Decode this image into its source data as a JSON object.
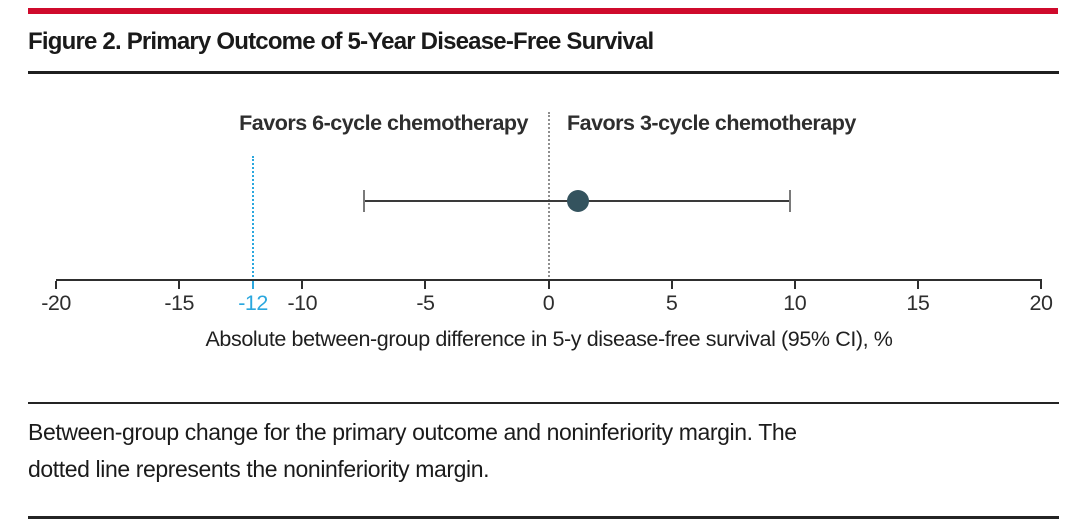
{
  "figure": {
    "title": "Figure 2. Primary Outcome of 5-Year Disease-Free Survival"
  },
  "caption": {
    "lines": [
      "Between-group change for the primary outcome and noninferiority margin. The",
      "dotted line represents the noninferiority margin."
    ]
  },
  "colors": {
    "accent_red": "#cf0a2c",
    "margin_blue": "#2aa7de",
    "marker": "#34535e",
    "text": "#1a1a1a"
  },
  "chart_data": {
    "type": "scatter",
    "title": "Primary Outcome of 5-Year Disease-Free Survival",
    "xlabel": "Absolute between-group difference in 5-y disease-free survival (95% CI), %",
    "xlim": [
      -20,
      20
    ],
    "x_ticks": [
      "-20",
      "-15",
      "-10",
      "-5",
      "0",
      "5",
      "10",
      "15",
      "20"
    ],
    "x_tick_values": [
      -20,
      -15,
      -10,
      -5,
      0,
      5,
      10,
      15,
      20
    ],
    "grid": false,
    "point_estimate": 1.2,
    "ci_lower": -7.5,
    "ci_upper": 9.8,
    "reference_line_x": 0,
    "noninferiority_margin": -12,
    "margin_tick_label": "-12",
    "favors_left_label": "Favors 6-cycle chemotherapy",
    "favors_right_label": "Favors 3-cycle chemotherapy"
  }
}
